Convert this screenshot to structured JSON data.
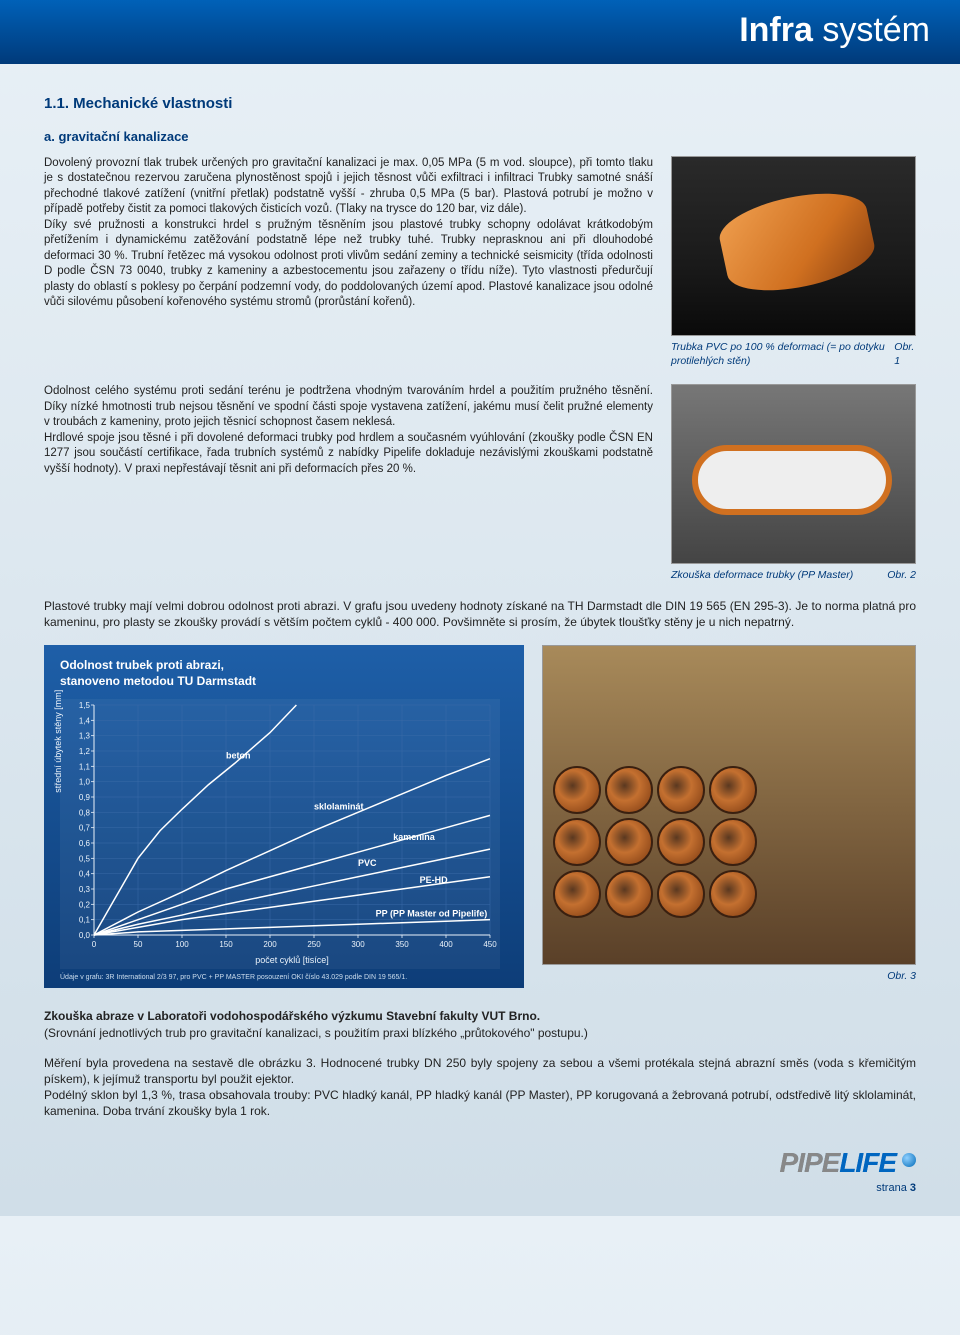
{
  "header": {
    "brand_bold": "Infra",
    "brand_light": " systém"
  },
  "section": {
    "number": "1.1. Mechanické vlastnosti",
    "sub_a": "a. gravitační kanalizace"
  },
  "para1": "Dovolený provozní tlak trubek určených pro gravitační kanalizaci je max. 0,05 MPa (5 m vod. sloupce), při tomto tlaku je s dostatečnou rezervou zaručena plynostěnost spojů i jejich těsnost vůči exfiltraci i infiltraci Trubky samotné snáší přechodné tlakové zatížení (vnitřní přetlak) podstatně vyšší - zhruba 0,5 MPa (5 bar). Plastová potrubí je možno v případě potřeby čistit za pomoci tlakových čisticích vozů. (Tlaky na trysce do 120 bar, viz dále).",
  "para1b": "Díky své pružnosti a konstrukci hrdel s pružným těsněním jsou plastové trubky schopny odolávat krátkodobým přetížením i dynamickému zatěžování podstatně lépe než trubky tuhé. Trubky neprasknou ani při dlouhodobé deformaci 30 %. Trubní řetězec má vysokou odolnost proti vlivům sedání zeminy a technické seismicity (třída odolnosti D podle ČSN 73 0040, trubky z kameniny a azbestocementu jsou zařazeny o třídu níže). Tyto vlastnosti předurčují plasty do oblastí s poklesy po čerpání podzemní vody, do poddolovaných území apod. Plastové kanalizace jsou odolné vůči silovému působení kořenového systému stromů (prorůstání kořenů).",
  "caption1": {
    "text": "Trubka PVC po 100 % deformaci (= po dotyku protilehlých stěn)",
    "fig": "Obr. 1"
  },
  "para2": "Odolnost celého systému proti sedání terénu je podtržena vhodným tvarováním hrdel a použitím pružného těsnění. Díky nízké hmotnosti trub nejsou těsnění ve spodní části spoje vystavena zatížení, jakému musí čelit pružné elementy v troubách z kameniny, proto jejich těsnicí schopnost časem neklesá.",
  "para2b": "Hrdlové spoje jsou těsné i při dovolené deformaci trubky pod hrdlem a současném vyúhlování (zkoušky podle ČSN EN 1277 jsou součástí certifikace, řada trubních systémů z nabídky Pipelife dokladuje nezávislými zkouškami podstatně vyšší hodnoty). V praxi nepřestávají těsnit ani při deformacích přes 20 %.",
  "caption2": {
    "text": "Zkouška deformace trubky (PP Master)",
    "fig": "Obr. 2"
  },
  "para3": "Plastové trubky mají velmi dobrou odolnost proti abrazi. V grafu jsou uvedeny hodnoty získané na TH Darmstadt dle DIN 19 565 (EN 295-3). Je to norma platná pro kameninu, pro plasty se zkoušky provádí s větším počtem cyklů - 400 000. Povšimněte si prosím, že úbytek tloušťky stěny je u nich nepatrný.",
  "chart": {
    "title": "Odolnost trubek proti abrazi,\nstanoveno metodou TU Darmstadt",
    "type": "line",
    "xlabel": "počet cyklů [tisíce]",
    "ylabel": "střední úbytek stěny [mm]",
    "xlim": [
      0,
      450
    ],
    "xtick_step": 50,
    "ylim": [
      0.0,
      1.5
    ],
    "ytick_step": 0.1,
    "background_color": "#154b8a",
    "grid_color": "#3a6aa8",
    "line_width": 1.5,
    "series": [
      {
        "name": "beton",
        "label_x": 150,
        "label_y": 1.15,
        "color": "#ffffff",
        "points": [
          [
            0,
            0
          ],
          [
            25,
            0.25
          ],
          [
            50,
            0.5
          ],
          [
            75,
            0.68
          ],
          [
            100,
            0.82
          ],
          [
            130,
            0.98
          ],
          [
            160,
            1.12
          ],
          [
            200,
            1.32
          ],
          [
            230,
            1.5
          ]
        ]
      },
      {
        "name": "sklolaminát",
        "label_x": 250,
        "label_y": 0.82,
        "color": "#ffffff",
        "points": [
          [
            0,
            0
          ],
          [
            50,
            0.15
          ],
          [
            100,
            0.28
          ],
          [
            150,
            0.42
          ],
          [
            200,
            0.55
          ],
          [
            250,
            0.68
          ],
          [
            300,
            0.8
          ],
          [
            350,
            0.92
          ],
          [
            400,
            1.04
          ],
          [
            450,
            1.15
          ]
        ]
      },
      {
        "name": "kamenina",
        "label_x": 340,
        "label_y": 0.62,
        "color": "#ffffff",
        "points": [
          [
            0,
            0
          ],
          [
            50,
            0.1
          ],
          [
            100,
            0.2
          ],
          [
            150,
            0.3
          ],
          [
            200,
            0.38
          ],
          [
            250,
            0.46
          ],
          [
            300,
            0.54
          ],
          [
            350,
            0.62
          ],
          [
            400,
            0.7
          ],
          [
            450,
            0.78
          ]
        ]
      },
      {
        "name": "PVC",
        "label_x": 300,
        "label_y": 0.45,
        "color": "#ffffff",
        "points": [
          [
            0,
            0
          ],
          [
            50,
            0.07
          ],
          [
            100,
            0.13
          ],
          [
            150,
            0.2
          ],
          [
            200,
            0.26
          ],
          [
            250,
            0.32
          ],
          [
            300,
            0.38
          ],
          [
            350,
            0.44
          ],
          [
            400,
            0.5
          ],
          [
            450,
            0.56
          ]
        ]
      },
      {
        "name": "PE-HD",
        "label_x": 370,
        "label_y": 0.34,
        "color": "#ffffff",
        "points": [
          [
            0,
            0
          ],
          [
            50,
            0.05
          ],
          [
            100,
            0.1
          ],
          [
            150,
            0.14
          ],
          [
            200,
            0.18
          ],
          [
            250,
            0.22
          ],
          [
            300,
            0.26
          ],
          [
            350,
            0.3
          ],
          [
            400,
            0.34
          ],
          [
            450,
            0.38
          ]
        ]
      },
      {
        "name": "PP (PP Master od Pipelife)",
        "label_x": 320,
        "label_y": 0.12,
        "color": "#ffffff",
        "points": [
          [
            0,
            0
          ],
          [
            50,
            0.02
          ],
          [
            100,
            0.03
          ],
          [
            150,
            0.04
          ],
          [
            200,
            0.05
          ],
          [
            250,
            0.06
          ],
          [
            300,
            0.07
          ],
          [
            350,
            0.08
          ],
          [
            400,
            0.09
          ],
          [
            450,
            0.1
          ]
        ]
      }
    ],
    "footnote": "Údaje v grafu: 3R International 2/3 97, pro PVC + PP MASTER posouzení OKI číslo 43.029 podle DIN 19 565/1."
  },
  "caption3": {
    "fig": "Obr. 3"
  },
  "para4_bold": "Zkouška abraze v Laboratoři vodohospodářského výzkumu Stavební fakulty VUT Brno.",
  "para4": "(Srovnání jednotlivých trub pro gravitační kanalizaci, s použitím praxi blízkého „průtokového\" postupu.)",
  "para5": "Měření byla provedena na sestavě dle obrázku 3. Hodnocené trubky DN 250 byly spojeny za sebou a všemi protékala stejná abrazní směs (voda s křemičitým pískem), k jejímuž transportu byl použit ejektor.",
  "para5b": "Podélný sklon byl 1,3 %, trasa obsahovala trouby: PVC hladký kanál, PP hladký kanál (PP Master), PP korugovaná a žebrovaná potrubí, odstředivě litý sklolaminát, kamenina. Doba trvání zkoušky byla 1 rok.",
  "footer": {
    "logo_a": "PIPE",
    "logo_b": "LIFE",
    "page_label": "strana",
    "page_num": "3"
  }
}
